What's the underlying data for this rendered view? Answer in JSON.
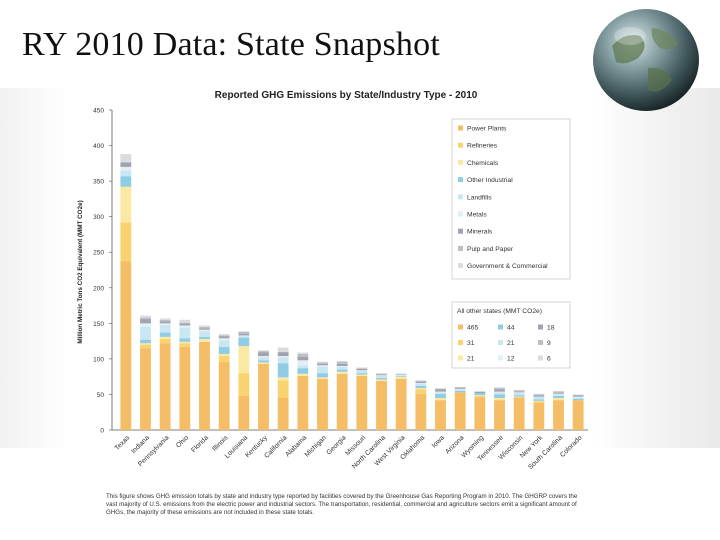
{
  "slide": {
    "title": "RY 2010 Data: State Snapshot",
    "caption": "This figure shows GHG emission totals by state and industry type reported by facilities covered by the Greenhouse Gas Reporting Program in 2010. The GHGRP covers the vast majority of U.S. emissions from the electric power and industrial sectors. The transportation, residential, commercial and agriculture sectors emit a significant amount of GHGs, the majority of these emissions are not included in these state totals."
  },
  "chart_data": {
    "type": "bar",
    "stacked": true,
    "title": "Reported GHG Emissions by State/Industry Type - 2010",
    "ylabel": "Million Metric Tons CO2 Equivalent (MMT CO2e)",
    "ylim": [
      0,
      450
    ],
    "yticks": [
      0,
      50,
      100,
      150,
      200,
      250,
      300,
      350,
      400,
      450
    ],
    "grid": false,
    "legend_position": "top-right",
    "categories": [
      "Texas",
      "Indiana",
      "Pennsylvania",
      "Ohio",
      "Florida",
      "Illinois",
      "Louisiana",
      "Kentucky",
      "California",
      "Alabama",
      "Michigan",
      "Georgia",
      "Missouri",
      "North Carolina",
      "West Virginia",
      "Oklahoma",
      "Iowa",
      "Arizona",
      "Wyoming",
      "Tennessee",
      "Wisconsin",
      "New York",
      "South Carolina",
      "Colorado"
    ],
    "series": [
      {
        "name": "Power Plants",
        "color": "#f5bd66",
        "values": [
          237,
          115,
          122,
          117,
          124,
          96,
          48,
          93,
          45,
          76,
          72,
          79,
          76,
          69,
          72,
          51,
          42,
          53,
          46,
          42,
          46,
          38,
          42,
          42
        ]
      },
      {
        "name": "Refineries",
        "color": "#f8d36f",
        "values": [
          55,
          5,
          6,
          5,
          0,
          8,
          32,
          0,
          25,
          0,
          0,
          0,
          0,
          0,
          0,
          6,
          0,
          0,
          2,
          0,
          0,
          2,
          0,
          0
        ]
      },
      {
        "name": "Chemicals",
        "color": "#fbe9a3",
        "values": [
          50,
          2,
          3,
          2,
          4,
          3,
          38,
          2,
          4,
          3,
          2,
          3,
          2,
          2,
          3,
          2,
          3,
          0,
          1,
          3,
          1,
          1,
          3,
          0
        ]
      },
      {
        "name": "Other Industrial",
        "color": "#8fcde6",
        "values": [
          15,
          5,
          6,
          5,
          3,
          10,
          12,
          3,
          20,
          8,
          6,
          3,
          2,
          2,
          1,
          3,
          6,
          2,
          3,
          5,
          2,
          2,
          3,
          2
        ]
      },
      {
        "name": "Landfills",
        "color": "#c9e6f3",
        "values": [
          8,
          18,
          10,
          15,
          8,
          9,
          2,
          4,
          8,
          4,
          9,
          4,
          3,
          3,
          1,
          3,
          2,
          2,
          0,
          3,
          3,
          4,
          2,
          2
        ]
      },
      {
        "name": "Metals",
        "color": "#e3eef5",
        "values": [
          5,
          5,
          3,
          3,
          2,
          3,
          1,
          2,
          2,
          7,
          2,
          1,
          1,
          1,
          1,
          1,
          1,
          1,
          0,
          1,
          1,
          0,
          1,
          1
        ]
      },
      {
        "name": "Minerals",
        "color": "#a0a3ad",
        "values": [
          6,
          6,
          3,
          3,
          2,
          3,
          2,
          5,
          5,
          5,
          2,
          3,
          2,
          1,
          1,
          2,
          3,
          2,
          2,
          3,
          1,
          2,
          1,
          2
        ]
      },
      {
        "name": "Pulp and Paper",
        "color": "#bbbec5",
        "values": [
          1,
          2,
          2,
          1,
          2,
          1,
          3,
          2,
          1,
          4,
          2,
          3,
          1,
          1,
          0,
          1,
          1,
          0,
          0,
          2,
          2,
          1,
          2,
          0
        ]
      },
      {
        "name": "Government & Commercial",
        "color": "#dadce0",
        "values": [
          11,
          3,
          2,
          4,
          2,
          2,
          1,
          1,
          6,
          2,
          1,
          1,
          1,
          1,
          0,
          1,
          1,
          0,
          0,
          1,
          0,
          1,
          1,
          1
        ]
      }
    ],
    "other_states": {
      "title": "All other states (MMT CO2e)",
      "entries": [
        {
          "color": "#f5bd66",
          "value": "465"
        },
        {
          "color": "#8fcde6",
          "value": "44"
        },
        {
          "color": "#a0a3ad",
          "value": "18"
        },
        {
          "color": "#f8d36f",
          "value": "31"
        },
        {
          "color": "#c9e6f3",
          "value": "21"
        },
        {
          "color": "#bbbec5",
          "value": "9"
        },
        {
          "color": "#fbe9a3",
          "value": "21"
        },
        {
          "color": "#e3eef5",
          "value": "12"
        },
        {
          "color": "#dadce0",
          "value": "6"
        }
      ]
    }
  }
}
